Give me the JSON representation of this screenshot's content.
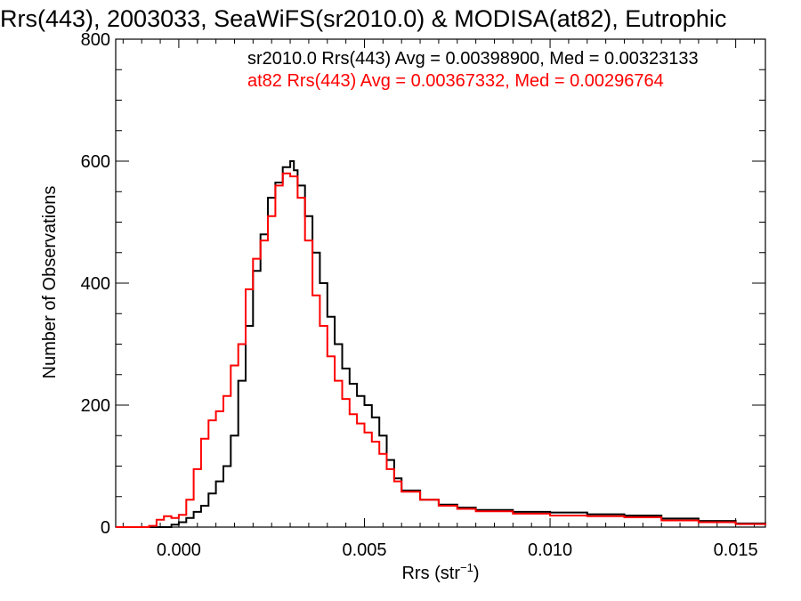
{
  "chart_data": {
    "type": "line",
    "title": "Rrs(443), 2003033, SeaWiFS(sr2010.0) & MODISA(at82), Eutrophic",
    "xlabel_main": "Rrs (str",
    "xlabel_sup": "−1",
    "xlabel_close": ")",
    "ylabel": "Number of Observations",
    "xlim": [
      -0.0017,
      0.0158
    ],
    "ylim": [
      0,
      800
    ],
    "xticks": [
      0.0,
      0.005,
      0.01,
      0.015
    ],
    "xtick_labels": [
      "0.000",
      "0.005",
      "0.010",
      "0.015"
    ],
    "yticks": [
      0,
      200,
      400,
      600,
      800
    ],
    "ytick_labels": [
      "0",
      "200",
      "400",
      "600",
      "800"
    ],
    "grid": false,
    "legend_position": "top-right",
    "series": [
      {
        "name": "sr2010.0 Rrs(443) Avg = 0.00398900, Med = 0.00323133",
        "color": "#000000",
        "x": [
          -0.0017,
          -0.0005,
          -0.0002,
          0.0,
          0.0002,
          0.0004,
          0.0006,
          0.0008,
          0.001,
          0.0012,
          0.0014,
          0.0016,
          0.0018,
          0.002,
          0.0022,
          0.0024,
          0.0026,
          0.0028,
          0.003,
          0.0031,
          0.0032,
          0.0034,
          0.0036,
          0.0038,
          0.004,
          0.0042,
          0.0044,
          0.0046,
          0.0048,
          0.005,
          0.0052,
          0.0054,
          0.0056,
          0.0058,
          0.006,
          0.0065,
          0.007,
          0.0075,
          0.008,
          0.009,
          0.01,
          0.011,
          0.012,
          0.013,
          0.014,
          0.015,
          0.0158
        ],
        "y": [
          0,
          0,
          4,
          8,
          15,
          25,
          35,
          55,
          75,
          100,
          150,
          240,
          330,
          420,
          480,
          540,
          565,
          590,
          600,
          585,
          560,
          510,
          450,
          400,
          345,
          300,
          260,
          235,
          215,
          200,
          180,
          150,
          110,
          80,
          60,
          45,
          37,
          32,
          28,
          25,
          24,
          21,
          19,
          14,
          10,
          6,
          3
        ]
      },
      {
        "name": "at82 Rrs(443) Avg = 0.00367332, Med = 0.00296764",
        "color": "#ff0000",
        "x": [
          -0.0017,
          -0.0008,
          -0.0006,
          -0.0004,
          -0.0002,
          0.0,
          0.0002,
          0.0004,
          0.0006,
          0.0008,
          0.001,
          0.0012,
          0.0014,
          0.0016,
          0.0018,
          0.002,
          0.0022,
          0.0024,
          0.0026,
          0.0028,
          0.003,
          0.0032,
          0.0034,
          0.0036,
          0.0038,
          0.004,
          0.0042,
          0.0044,
          0.0046,
          0.0048,
          0.005,
          0.0052,
          0.0054,
          0.0056,
          0.0058,
          0.006,
          0.0065,
          0.007,
          0.0075,
          0.008,
          0.009,
          0.01,
          0.011,
          0.012,
          0.013,
          0.014,
          0.015,
          0.0158
        ],
        "y": [
          0,
          2,
          12,
          18,
          15,
          20,
          45,
          95,
          145,
          175,
          190,
          215,
          265,
          300,
          390,
          440,
          470,
          510,
          560,
          580,
          575,
          540,
          470,
          380,
          330,
          280,
          240,
          210,
          185,
          170,
          155,
          140,
          120,
          95,
          75,
          58,
          45,
          35,
          30,
          26,
          22,
          19,
          18,
          16,
          11,
          8,
          5,
          3
        ]
      }
    ]
  }
}
